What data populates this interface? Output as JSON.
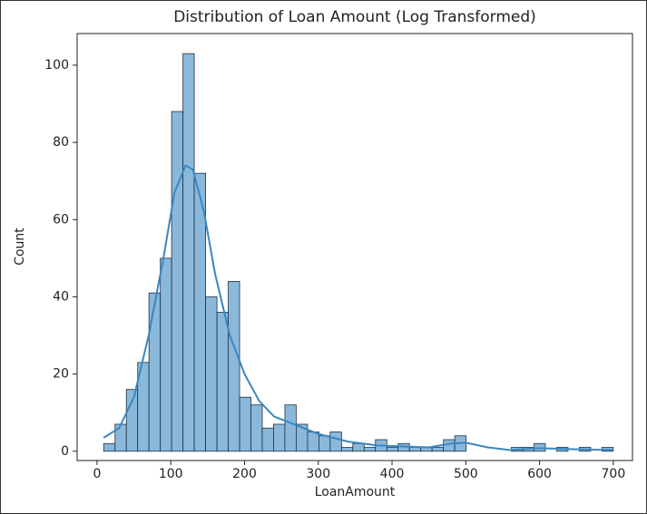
{
  "chart_data": {
    "type": "histogram",
    "title": "Distribution of Loan Amount (Log Transformed)",
    "x_label": "LoanAmount",
    "y_label": "Count",
    "bins": [
      9,
      24.4,
      39.7,
      55.1,
      70.4,
      85.8,
      101.1,
      116.5,
      131.8,
      147.2,
      162.6,
      177.9,
      193.3,
      208.6,
      224.0,
      239.3,
      254.7,
      270.0,
      285.4,
      300.8,
      316.1,
      331.5,
      346.8,
      362.2,
      377.5,
      392.9,
      408.2,
      423.6,
      439.0,
      454.3,
      469.7,
      485.0,
      500.4,
      515.7,
      531.1,
      546.4,
      561.8,
      577.2,
      592.5,
      607.9,
      623.2,
      638.6,
      653.9,
      669.3,
      684.6,
      700
    ],
    "values": [
      2,
      7,
      16,
      23,
      41,
      50,
      88,
      103,
      72,
      40,
      36,
      44,
      14,
      12,
      6,
      7,
      12,
      7,
      5,
      4,
      5,
      1,
      2,
      1,
      3,
      1,
      2,
      1,
      1,
      1,
      3,
      4,
      0,
      0,
      0,
      0,
      1,
      1,
      2,
      0,
      1,
      0,
      1,
      0,
      1
    ],
    "color": "#8ab8da",
    "edge_color": "#1f2f3f",
    "kde": {
      "color": "#3a87be",
      "x": [
        9,
        30,
        50,
        70,
        90,
        105,
        120,
        130,
        145,
        160,
        180,
        200,
        220,
        240,
        260,
        300,
        340,
        380,
        420,
        450,
        480,
        500,
        530,
        560,
        600,
        650,
        700
      ],
      "values": [
        3.5,
        6,
        14,
        30,
        50,
        67,
        74,
        73,
        62,
        46,
        30,
        20,
        13,
        9,
        7.5,
        4.5,
        2.5,
        1.5,
        1.2,
        1,
        2,
        2.2,
        1,
        0.3,
        0.8,
        0.5,
        0.3
      ]
    },
    "xlim": [
      -27,
      726
    ],
    "ylim": [
      -2.4,
      108.2
    ],
    "xticks": [
      0,
      100,
      200,
      300,
      400,
      500,
      600,
      700
    ],
    "yticks": [
      0,
      20,
      40,
      60,
      80,
      100
    ]
  }
}
